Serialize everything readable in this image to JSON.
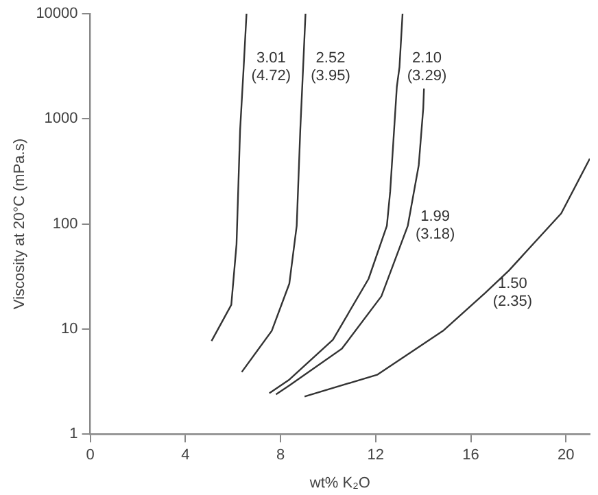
{
  "chart_data": {
    "type": "line",
    "xlabel": "wt% K₂O",
    "ylabel": "Viscosity at 20°C (mPa.s)",
    "log": "y",
    "xlim": [
      0,
      21
    ],
    "xticks": [
      0,
      4,
      8,
      12,
      16,
      20
    ],
    "ylim": [
      1,
      10000
    ],
    "yticks": [
      1,
      10,
      100,
      1000,
      10000
    ],
    "grid": false,
    "legend": false,
    "marker": "none",
    "line_style": "solid",
    "series": [
      {
        "color": "#333333",
        "x": [
          5.1,
          5.93,
          6.15,
          6.3,
          6.45,
          6.57
        ],
        "values": [
          7.7,
          17,
          64,
          780,
          3100,
          10000
        ]
      },
      {
        "color": "#333333",
        "x": [
          6.37,
          7.63,
          8.37,
          8.68,
          8.83,
          8.95,
          9.05
        ],
        "values": [
          3.9,
          9.6,
          27,
          96,
          780,
          3100,
          10000
        ]
      },
      {
        "color": "#333333",
        "x": [
          7.53,
          8.37,
          10.2,
          11.7,
          12.47,
          12.61,
          12.89,
          13.0,
          13.13
        ],
        "values": [
          2.45,
          3.3,
          7.9,
          30,
          96,
          204,
          2030,
          3100,
          10000
        ]
      },
      {
        "color": "#333333",
        "x": [
          7.81,
          8.37,
          10.58,
          12.24,
          13.35,
          13.81,
          14.0,
          14.03
        ],
        "values": [
          2.39,
          2.9,
          6.5,
          20.5,
          96,
          362,
          1260,
          1940
        ]
      },
      {
        "color": "#333333",
        "x": [
          9.01,
          12.06,
          14.83,
          16.6,
          17.6,
          19.8,
          21
        ],
        "values": [
          2.28,
          3.67,
          9.6,
          22,
          36,
          126,
          417
        ]
      }
    ],
    "annotations": [
      {
        "text": "3.01\n(4.72)",
        "x": 6.45,
        "y": 3100
      },
      {
        "text": "2.52\n(3.95)",
        "x": 8.95,
        "y": 3100
      },
      {
        "text": "2.10\n(3.29)",
        "x": 13.0,
        "y": 3100
      },
      {
        "text": "1.99\n(3.18)",
        "x": 13.35,
        "y": 96
      },
      {
        "text": "1.50\n(2.35)",
        "x": 16.6,
        "y": 22
      }
    ]
  }
}
